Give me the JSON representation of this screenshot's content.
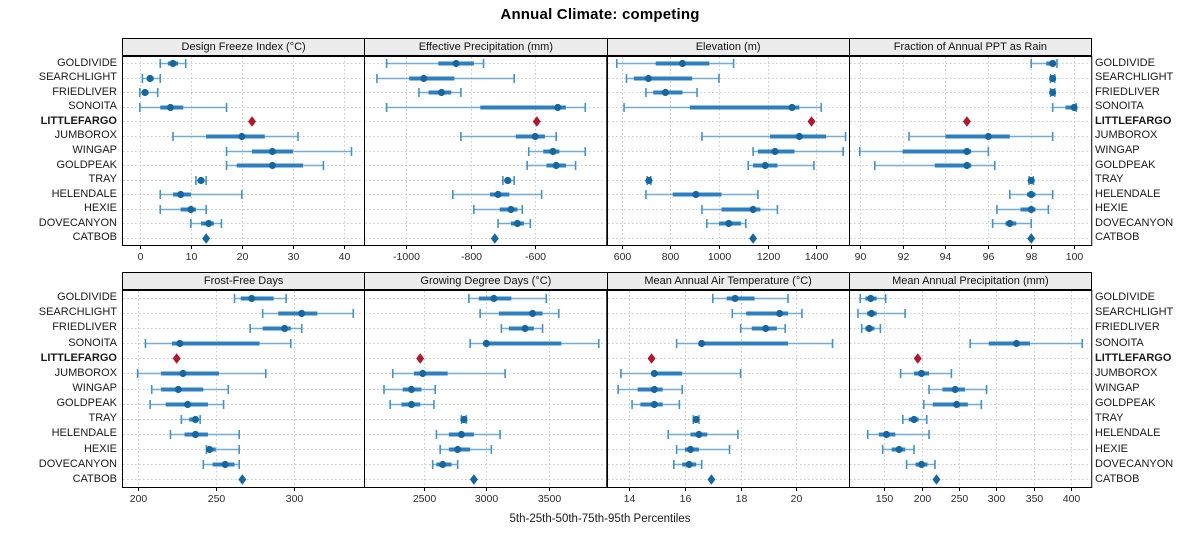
{
  "title": "Annual Climate: competing",
  "xlabel": "5th-25th-50th-75th-95th Percentiles",
  "stations": [
    "GOLDIVIDE",
    "SEARCHLIGHT",
    "FRIEDLIVER",
    "SONOITA",
    "LITTLEFARGO",
    "JUMBOROX",
    "WINGAP",
    "GOLDPEAK",
    "TRAY",
    "HELENDALE",
    "HEXIE",
    "DOVECANYON",
    "CATBOB"
  ],
  "highlight_station": "LITTLEFARGO",
  "point_only_station": "CATBOB",
  "colors": {
    "median_dot": "#16679f",
    "bar": "#2d7fc0",
    "whisker": "#74add1",
    "cap": "#4393c3",
    "highlight": "#b2182b",
    "header_bg": "#ececec",
    "grid": "#c9c9c9",
    "border": "#000000",
    "tick_text": "#2b2b2b"
  },
  "chart_data": [
    {
      "type": "dotplot-percentiles",
      "panel_title": "Design Freeze Index (°C)",
      "row": 0,
      "x_ticks": [
        0,
        10,
        20,
        30,
        40
      ],
      "x_range": [
        -3.5,
        44
      ],
      "values": [
        [
          4,
          5.5,
          6.5,
          7.5,
          9
        ],
        [
          0.5,
          1.5,
          2,
          2.7,
          4
        ],
        [
          0,
          0.7,
          1,
          1.7,
          3.5
        ],
        [
          0,
          4,
          6,
          8.5,
          17
        ],
        [
          22
        ],
        [
          6.5,
          13,
          20,
          24.5,
          31
        ],
        [
          17,
          22,
          26,
          30,
          41.5
        ],
        [
          17,
          19,
          26,
          32,
          36
        ],
        [
          11,
          11.5,
          12,
          12.5,
          13
        ],
        [
          4,
          6.5,
          8,
          10,
          20
        ],
        [
          4,
          8,
          10,
          11,
          13
        ],
        [
          10,
          12,
          13.5,
          14.5,
          16
        ],
        [
          13
        ]
      ]
    },
    {
      "type": "dotplot-percentiles",
      "panel_title": "Effective Precipitation (mm)",
      "row": 0,
      "x_ticks": [
        -1000,
        -800,
        -600
      ],
      "x_range": [
        -1130,
        -380
      ],
      "values": [
        [
          -1060,
          -900,
          -845,
          -790,
          -760
        ],
        [
          -1090,
          -990,
          -945,
          -850,
          -665
        ],
        [
          -960,
          -930,
          -890,
          -860,
          -830
        ],
        [
          -1060,
          -770,
          -530,
          -505,
          -445
        ],
        [
          -595
        ],
        [
          -830,
          -660,
          -600,
          -570,
          -535
        ],
        [
          -620,
          -575,
          -545,
          -525,
          -445
        ],
        [
          -625,
          -565,
          -535,
          -505,
          -475
        ],
        [
          -700,
          -692,
          -685,
          -675,
          -665
        ],
        [
          -855,
          -740,
          -715,
          -680,
          -580
        ],
        [
          -790,
          -710,
          -675,
          -655,
          -640
        ],
        [
          -715,
          -675,
          -655,
          -635,
          -615
        ],
        [
          -725
        ]
      ]
    },
    {
      "type": "dotplot-percentiles",
      "panel_title": "Elevation (m)",
      "row": 0,
      "x_ticks": [
        600,
        800,
        1000,
        1200,
        1400
      ],
      "x_range": [
        540,
        1535
      ],
      "values": [
        [
          580,
          740,
          850,
          960,
          1060
        ],
        [
          620,
          650,
          710,
          890,
          1000
        ],
        [
          700,
          730,
          780,
          850,
          910
        ],
        [
          610,
          880,
          1300,
          1330,
          1420
        ],
        [
          1380
        ],
        [
          930,
          1210,
          1330,
          1440,
          1520
        ],
        [
          1140,
          1160,
          1230,
          1310,
          1510
        ],
        [
          1120,
          1140,
          1190,
          1240,
          1390
        ],
        [
          705,
          709,
          712,
          716,
          720
        ],
        [
          700,
          810,
          905,
          1010,
          1160
        ],
        [
          930,
          1010,
          1140,
          1170,
          1240
        ],
        [
          950,
          1000,
          1040,
          1090,
          1110
        ],
        [
          1140
        ]
      ]
    },
    {
      "type": "dotplot-percentiles",
      "panel_title": "Fraction of Annual PPT as Rain",
      "row": 0,
      "x_ticks": [
        90,
        92,
        94,
        96,
        98,
        100
      ],
      "x_range": [
        89.5,
        100.8
      ],
      "values": [
        [
          98,
          98.7,
          99,
          99.1,
          99.2
        ],
        [
          98.9,
          99,
          99,
          99,
          99.1
        ],
        [
          98.9,
          99,
          99,
          99,
          99.1
        ],
        [
          99,
          99.6,
          100,
          100,
          100.1
        ],
        [
          95
        ],
        [
          92.3,
          94,
          96,
          97,
          99
        ],
        [
          90,
          92,
          95,
          95.2,
          96
        ],
        [
          90.7,
          93.5,
          95,
          95.2,
          96.3
        ],
        [
          97.9,
          98,
          98,
          98,
          98.1
        ],
        [
          97,
          97.8,
          98,
          98.2,
          99
        ],
        [
          96.4,
          97.5,
          98,
          98.2,
          98.8
        ],
        [
          96.2,
          96.8,
          97,
          97.3,
          98
        ],
        [
          98
        ]
      ]
    },
    {
      "type": "dotplot-percentiles",
      "panel_title": "Frost-Free Days",
      "row": 1,
      "x_ticks": [
        200,
        250,
        300
      ],
      "x_range": [
        190,
        345
      ],
      "values": [
        [
          262,
          266,
          273,
          287,
          295
        ],
        [
          280,
          290,
          305,
          315,
          338
        ],
        [
          272,
          280,
          294,
          298,
          305
        ],
        [
          205,
          222,
          227,
          278,
          298
        ],
        [
          225
        ],
        [
          200,
          215,
          229,
          252,
          282
        ],
        [
          209,
          215,
          226,
          242,
          258
        ],
        [
          208,
          218,
          232,
          245,
          255
        ],
        [
          228,
          233,
          237,
          239,
          240
        ],
        [
          221,
          230,
          237,
          245,
          265
        ],
        [
          244,
          245,
          246,
          250,
          265
        ],
        [
          242,
          248,
          256,
          262,
          265
        ],
        [
          267
        ]
      ]
    },
    {
      "type": "dotplot-percentiles",
      "panel_title": "Growing Degree Days (°C)",
      "row": 1,
      "x_ticks": [
        2500,
        3000,
        3500
      ],
      "x_range": [
        2020,
        3960
      ],
      "values": [
        [
          2860,
          2940,
          3060,
          3200,
          3480
        ],
        [
          2950,
          3100,
          3370,
          3450,
          3580
        ],
        [
          3120,
          3180,
          3310,
          3380,
          3450
        ],
        [
          2870,
          2980,
          3000,
          3600,
          3900
        ],
        [
          2470
        ],
        [
          2250,
          2420,
          2490,
          2690,
          3150
        ],
        [
          2180,
          2330,
          2400,
          2480,
          2590
        ],
        [
          2230,
          2320,
          2400,
          2470,
          2580
        ],
        [
          2800,
          2810,
          2820,
          2830,
          2840
        ],
        [
          2600,
          2700,
          2800,
          2900,
          3110
        ],
        [
          2630,
          2700,
          2770,
          2870,
          3040
        ],
        [
          2570,
          2600,
          2650,
          2720,
          2770
        ],
        [
          2900
        ]
      ]
    },
    {
      "type": "dotplot-percentiles",
      "panel_title": "Mean Annual Air Temperature (°C)",
      "row": 1,
      "x_ticks": [
        14,
        16,
        18,
        20
      ],
      "x_range": [
        13.2,
        21.9
      ],
      "values": [
        [
          17.0,
          17.5,
          17.8,
          18.5,
          19.7
        ],
        [
          17.7,
          18.2,
          19.4,
          19.7,
          20.2
        ],
        [
          18.0,
          18.4,
          18.9,
          19.3,
          19.6
        ],
        [
          15.7,
          16.5,
          16.6,
          19.7,
          21.3
        ],
        [
          14.8
        ],
        [
          13.7,
          14.8,
          14.9,
          15.9,
          18.0
        ],
        [
          13.6,
          14.3,
          14.9,
          15.2,
          15.9
        ],
        [
          14.1,
          14.4,
          14.9,
          15.2,
          15.8
        ],
        [
          16.3,
          16.35,
          16.4,
          16.45,
          16.5
        ],
        [
          15.4,
          16.2,
          16.5,
          16.8,
          17.9
        ],
        [
          15.7,
          16.0,
          16.2,
          16.5,
          17.6
        ],
        [
          15.6,
          15.9,
          16.15,
          16.4,
          16.6
        ],
        [
          16.95
        ]
      ]
    },
    {
      "type": "dotplot-percentiles",
      "panel_title": "Mean Annual Precipitation (mm)",
      "row": 1,
      "x_ticks": [
        150,
        200,
        250,
        300,
        350,
        400
      ],
      "x_range": [
        103,
        427
      ],
      "values": [
        [
          118,
          125,
          132,
          140,
          152
        ],
        [
          115,
          127,
          133,
          140,
          178
        ],
        [
          120,
          125,
          130,
          137,
          145
        ],
        [
          265,
          290,
          327,
          345,
          415
        ],
        [
          195
        ],
        [
          172,
          190,
          200,
          210,
          240
        ],
        [
          210,
          228,
          245,
          258,
          287
        ],
        [
          203,
          215,
          247,
          262,
          280
        ],
        [
          175,
          183,
          190,
          196,
          207
        ],
        [
          128,
          143,
          153,
          165,
          210
        ],
        [
          148,
          160,
          170,
          178,
          190
        ],
        [
          180,
          192,
          200,
          208,
          218
        ],
        [
          220
        ]
      ]
    }
  ]
}
